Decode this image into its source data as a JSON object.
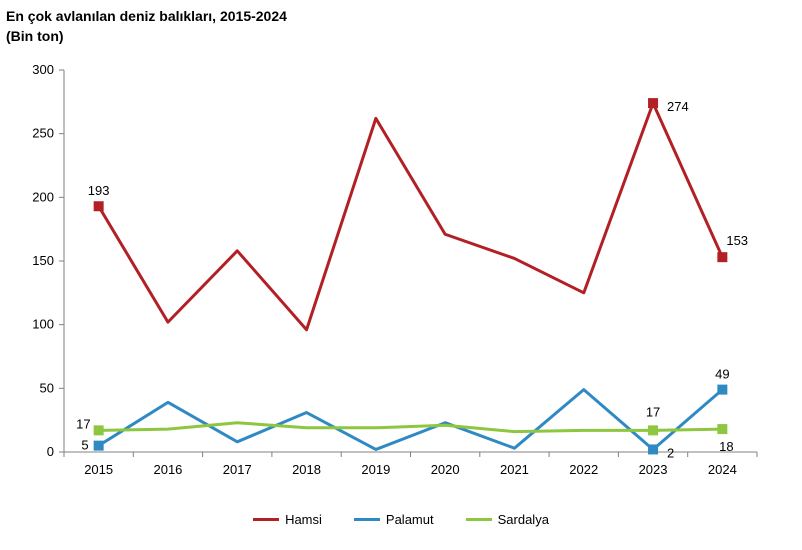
{
  "title_line1": "En çok avlanılan deniz balıkları, 2015-2024",
  "title_line2": "(Bin ton)",
  "chart_data": {
    "type": "line",
    "title": "En çok avlanılan deniz balıkları, 2015-2024",
    "ylabel": "(Bin ton)",
    "categories": [
      "2015",
      "2016",
      "2017",
      "2018",
      "2019",
      "2020",
      "2021",
      "2022",
      "2023",
      "2024"
    ],
    "ylim": [
      0,
      300
    ],
    "yticks": [
      0,
      50,
      100,
      150,
      200,
      250,
      300
    ],
    "grid": false,
    "legend_position": "bottom",
    "series": [
      {
        "name": "Hamsi",
        "color": "#b22025",
        "values": [
          193,
          102,
          158,
          96,
          262,
          171,
          152,
          125,
          274,
          153
        ],
        "labeled": [
          0,
          8,
          9
        ]
      },
      {
        "name": "Palamut",
        "color": "#2f8ac4",
        "values": [
          5,
          39,
          8,
          31,
          2,
          23,
          3,
          49,
          2,
          49
        ],
        "labeled": [
          0,
          8,
          9
        ]
      },
      {
        "name": "Sardalya",
        "color": "#8dc63f",
        "values": [
          17,
          18,
          23,
          19,
          19,
          21,
          16,
          17,
          17,
          18
        ],
        "labeled": [
          0,
          8,
          9
        ]
      }
    ],
    "data_labels": [
      {
        "series": "Hamsi",
        "index": 0,
        "text": "193"
      },
      {
        "series": "Hamsi",
        "index": 8,
        "text": "274"
      },
      {
        "series": "Hamsi",
        "index": 9,
        "text": "153"
      },
      {
        "series": "Palamut",
        "index": 0,
        "text": "5"
      },
      {
        "series": "Palamut",
        "index": 8,
        "text": "2"
      },
      {
        "series": "Palamut",
        "index": 9,
        "text": "49"
      },
      {
        "series": "Sardalya",
        "index": 0,
        "text": "17"
      },
      {
        "series": "Sardalya",
        "index": 8,
        "text": "17"
      },
      {
        "series": "Sardalya",
        "index": 9,
        "text": "18"
      }
    ]
  }
}
